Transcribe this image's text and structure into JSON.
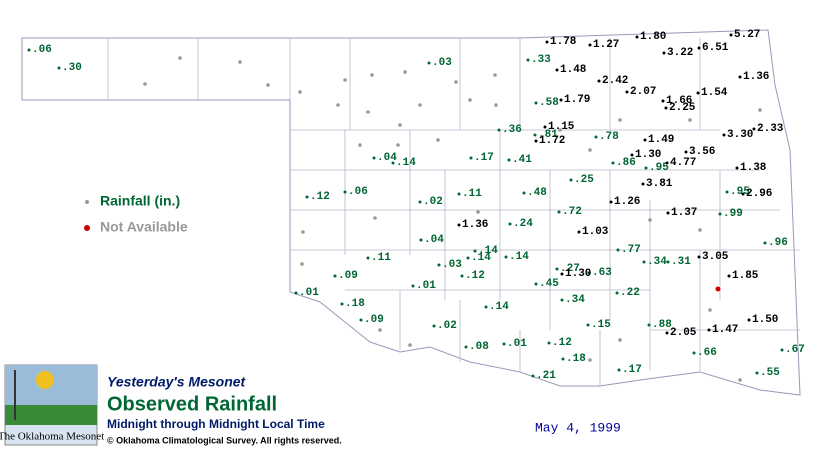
{
  "map": {
    "legend": {
      "rainfall": "Rainfall (in.)",
      "not_available": "Not Available"
    },
    "stations": [
      ".06",
      ".30",
      ".03",
      ".33",
      ".58",
      ".36",
      ".81",
      ".78",
      ".04",
      ".14",
      ".17",
      ".41",
      ".86",
      ".95",
      ".12",
      ".06",
      ".02",
      ".11",
      ".48",
      ".25",
      ".95",
      ".72",
      ".99",
      ".24",
      ".04",
      ".14",
      ".14",
      ".14",
      ".03",
      ".12",
      ".11",
      ".09",
      ".77",
      ".34",
      ".31",
      ".27",
      ".63",
      ".45",
      ".01",
      ".01",
      ".18",
      ".34",
      ".22",
      ".14",
      ".09",
      ".02",
      ".15",
      ".88",
      ".08",
      ".01",
      ".12",
      ".18",
      ".66",
      ".67",
      ".96",
      ".17",
      ".21",
      ".55",
      "1.78",
      "1.27",
      "1.80",
      "3.22",
      "6.51",
      "5.27",
      "1.48",
      "2.42",
      "2.07",
      "1.79",
      "1.66",
      "2.25",
      "1.54",
      "1.36",
      "1.15",
      "1.72",
      "1.49",
      "3.30",
      "2.33",
      "1.30",
      "3.56",
      "4.77",
      "1.38",
      "3.81",
      "2.96",
      "1.26",
      "1.37",
      "1.36",
      "1.03",
      "3.05",
      "1.85",
      "1.30",
      "1.50",
      "2.05",
      "1.47"
    ]
  },
  "header": {
    "logo_text": "The Oklahoma Mesonet",
    "kicker": "Yesterday's Mesonet",
    "title": "Observed Rainfall",
    "subtitle": "Midnight through Midnight Local Time",
    "copyright": "© Oklahoma Climatological Survey.  All rights reserved."
  },
  "date": "May 4, 1999"
}
